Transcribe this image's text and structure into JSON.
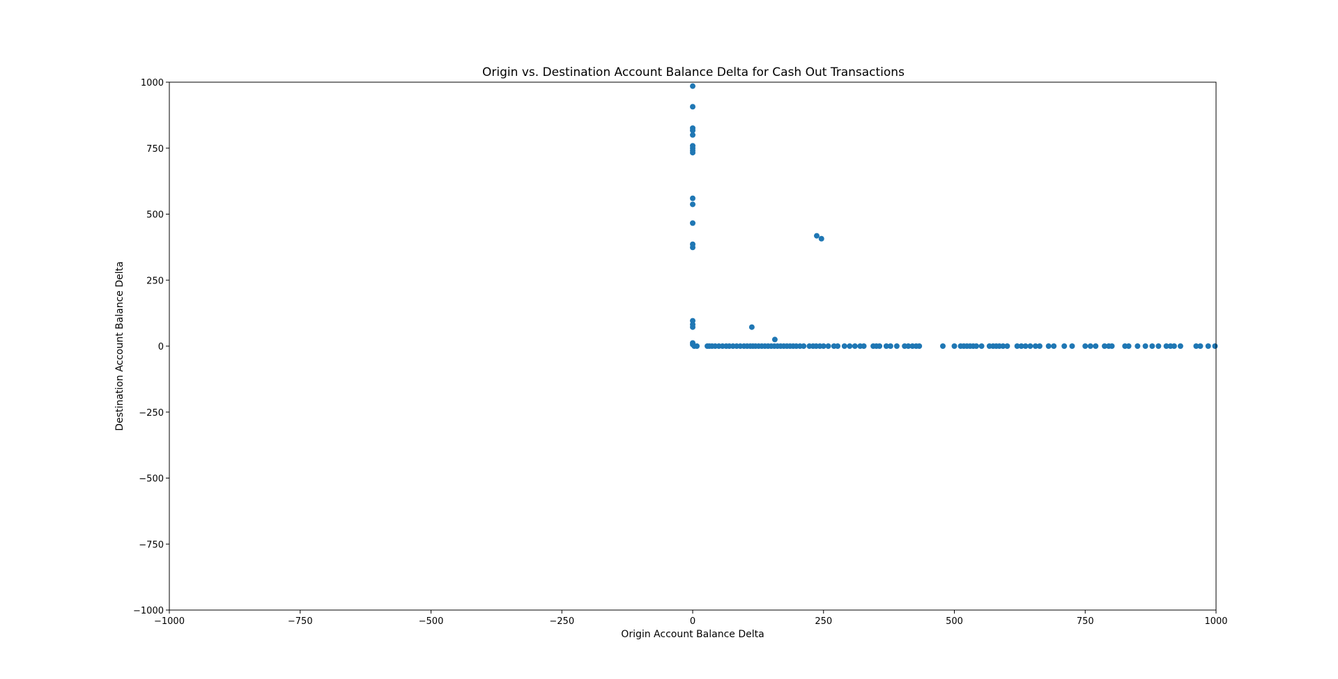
{
  "chart_data": {
    "type": "scatter",
    "title": "Origin vs. Destination Account Balance Delta for Cash Out Transactions",
    "xlabel": "Origin Account Balance Delta",
    "ylabel": "Destination Account Balance Delta",
    "xlim": [
      -1000,
      1000
    ],
    "ylim": [
      -1000,
      1000
    ],
    "xticks": [
      -1000,
      -750,
      -500,
      -250,
      0,
      250,
      500,
      750,
      1000
    ],
    "yticks": [
      -1000,
      -750,
      -500,
      -250,
      0,
      250,
      500,
      750,
      1000
    ],
    "xtick_labels": [
      "−1000",
      "−750",
      "−500",
      "−250",
      "0",
      "250",
      "500",
      "750",
      "1000"
    ],
    "ytick_labels": [
      "−1000",
      "−750",
      "−500",
      "−250",
      "0",
      "250",
      "500",
      "750",
      "1000"
    ],
    "grid": false,
    "marker_color": "#1f77b4",
    "series": [
      {
        "points": [
          [
            0,
            985
          ],
          [
            0,
            907
          ],
          [
            0,
            826
          ],
          [
            0,
            817
          ],
          [
            0,
            800
          ],
          [
            0,
            759
          ],
          [
            0,
            750
          ],
          [
            0,
            741
          ],
          [
            0,
            733
          ],
          [
            0,
            560
          ],
          [
            0,
            537
          ],
          [
            0,
            466
          ],
          [
            0,
            386
          ],
          [
            0,
            374
          ],
          [
            0,
            96
          ],
          [
            0,
            82
          ],
          [
            0,
            72
          ],
          [
            0,
            12
          ],
          [
            0,
            6
          ],
          [
            237,
            418
          ],
          [
            246,
            407
          ],
          [
            113,
            72
          ],
          [
            157,
            25
          ],
          [
            3,
            0
          ],
          [
            8,
            0
          ],
          [
            28,
            0
          ],
          [
            32,
            0
          ],
          [
            37,
            0
          ],
          [
            43,
            0
          ],
          [
            50,
            0
          ],
          [
            57,
            0
          ],
          [
            64,
            0
          ],
          [
            70,
            0
          ],
          [
            77,
            0
          ],
          [
            84,
            0
          ],
          [
            91,
            0
          ],
          [
            98,
            0
          ],
          [
            104,
            0
          ],
          [
            110,
            0
          ],
          [
            115,
            0
          ],
          [
            120,
            0
          ],
          [
            126,
            0
          ],
          [
            132,
            0
          ],
          [
            138,
            0
          ],
          [
            144,
            0
          ],
          [
            150,
            0
          ],
          [
            156,
            0
          ],
          [
            162,
            0
          ],
          [
            168,
            0
          ],
          [
            174,
            0
          ],
          [
            180,
            0
          ],
          [
            186,
            0
          ],
          [
            192,
            0
          ],
          [
            198,
            0
          ],
          [
            205,
            0
          ],
          [
            212,
            0
          ],
          [
            223,
            0
          ],
          [
            230,
            0
          ],
          [
            236,
            0
          ],
          [
            243,
            0
          ],
          [
            250,
            0
          ],
          [
            259,
            0
          ],
          [
            270,
            0
          ],
          [
            277,
            0
          ],
          [
            290,
            0
          ],
          [
            300,
            0
          ],
          [
            310,
            0
          ],
          [
            320,
            0
          ],
          [
            327,
            0
          ],
          [
            345,
            0
          ],
          [
            351,
            0
          ],
          [
            357,
            0
          ],
          [
            370,
            0
          ],
          [
            378,
            0
          ],
          [
            390,
            0
          ],
          [
            405,
            0
          ],
          [
            412,
            0
          ],
          [
            420,
            0
          ],
          [
            427,
            0
          ],
          [
            433,
            0
          ],
          [
            478,
            0
          ],
          [
            500,
            0
          ],
          [
            512,
            0
          ],
          [
            518,
            0
          ],
          [
            524,
            0
          ],
          [
            530,
            0
          ],
          [
            536,
            0
          ],
          [
            542,
            0
          ],
          [
            552,
            0
          ],
          [
            567,
            0
          ],
          [
            574,
            0
          ],
          [
            580,
            0
          ],
          [
            586,
            0
          ],
          [
            593,
            0
          ],
          [
            601,
            0
          ],
          [
            620,
            0
          ],
          [
            628,
            0
          ],
          [
            636,
            0
          ],
          [
            645,
            0
          ],
          [
            655,
            0
          ],
          [
            663,
            0
          ],
          [
            680,
            0
          ],
          [
            690,
            0
          ],
          [
            710,
            0
          ],
          [
            725,
            0
          ],
          [
            750,
            0
          ],
          [
            760,
            0
          ],
          [
            770,
            0
          ],
          [
            787,
            0
          ],
          [
            795,
            0
          ],
          [
            801,
            0
          ],
          [
            826,
            0
          ],
          [
            833,
            0
          ],
          [
            850,
            0
          ],
          [
            865,
            0
          ],
          [
            878,
            0
          ],
          [
            890,
            0
          ],
          [
            905,
            0
          ],
          [
            913,
            0
          ],
          [
            920,
            0
          ],
          [
            932,
            0
          ],
          [
            962,
            0
          ],
          [
            970,
            0
          ],
          [
            985,
            0
          ],
          [
            998,
            0
          ]
        ]
      }
    ]
  }
}
